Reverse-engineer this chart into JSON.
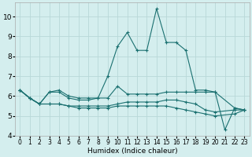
{
  "xlabel": "Humidex (Indice chaleur)",
  "x": [
    0,
    1,
    2,
    3,
    4,
    5,
    6,
    7,
    8,
    9,
    10,
    11,
    12,
    13,
    14,
    15,
    16,
    17,
    18,
    19,
    20,
    21,
    22,
    23
  ],
  "lines": [
    [
      6.3,
      5.9,
      5.6,
      6.2,
      6.2,
      5.9,
      5.8,
      5.8,
      5.9,
      7.0,
      8.5,
      9.2,
      8.3,
      8.3,
      10.4,
      8.7,
      8.7,
      8.3,
      6.3,
      6.3,
      6.2,
      4.3,
      5.4,
      5.3
    ],
    [
      6.3,
      5.9,
      5.6,
      6.2,
      6.3,
      6.0,
      5.9,
      5.9,
      5.9,
      5.9,
      6.5,
      6.1,
      6.1,
      6.1,
      6.1,
      6.2,
      6.2,
      6.2,
      6.2,
      6.2,
      6.2,
      null,
      5.4,
      5.3
    ],
    [
      6.3,
      5.9,
      5.6,
      5.6,
      5.6,
      5.5,
      5.5,
      5.5,
      5.5,
      5.5,
      5.6,
      5.7,
      5.7,
      5.7,
      5.7,
      5.8,
      5.8,
      5.7,
      5.6,
      5.3,
      5.2,
      null,
      5.3,
      5.3
    ],
    [
      6.3,
      5.9,
      5.6,
      5.6,
      5.6,
      5.5,
      5.4,
      5.4,
      5.4,
      5.4,
      5.5,
      5.5,
      5.5,
      5.5,
      5.5,
      5.5,
      5.4,
      5.3,
      5.2,
      5.1,
      5.0,
      null,
      5.1,
      5.3
    ]
  ],
  "color": "#1a7070",
  "bg_color": "#d4eeee",
  "grid_color": "#b8d8d8",
  "ylim": [
    4,
    10.7
  ],
  "yticks": [
    4,
    5,
    6,
    7,
    8,
    9,
    10
  ],
  "xlim": [
    -0.5,
    23.5
  ],
  "xticks": [
    0,
    1,
    2,
    3,
    4,
    5,
    6,
    7,
    8,
    9,
    10,
    11,
    12,
    13,
    14,
    15,
    16,
    17,
    18,
    19,
    20,
    21,
    22,
    23
  ],
  "figsize": [
    3.2,
    2.0
  ],
  "dpi": 100
}
